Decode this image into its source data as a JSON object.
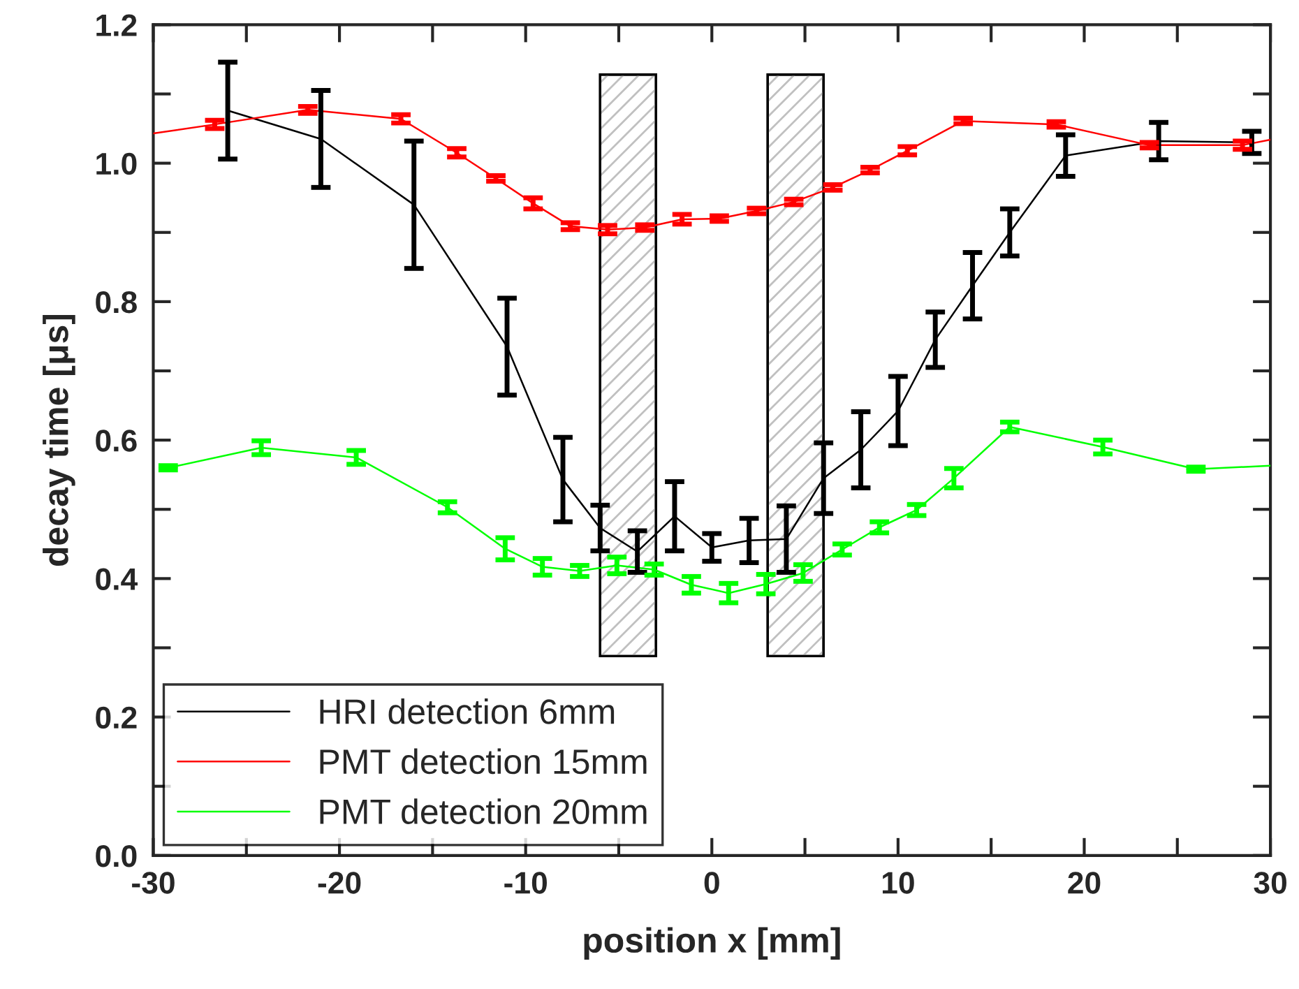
{
  "chart_data": {
    "type": "line",
    "xlabel": "position x [mm]",
    "ylabel": "decay time [μs]",
    "xlim": [
      -30,
      30
    ],
    "ylim": [
      0,
      1.2
    ],
    "xticks": [
      -30,
      {
        "value": -25,
        "label": null
      },
      -20,
      {
        "value": -15,
        "label": null
      },
      -10,
      {
        "value": -5,
        "label": null
      },
      0,
      {
        "value": 5,
        "label": null
      },
      10,
      {
        "value": 15,
        "label": null
      },
      20,
      {
        "value": 25,
        "label": null
      },
      30
    ],
    "yticks": [
      {
        "value": 0,
        "label": "0.0"
      },
      {
        "value": 0.1,
        "label": null
      },
      0.2,
      {
        "value": 0.3,
        "label": null
      },
      0.4,
      {
        "value": 0.5,
        "label": null
      },
      0.6,
      {
        "value": 0.7,
        "label": null
      },
      0.8,
      {
        "value": 0.9,
        "label": null
      },
      {
        "value": 1,
        "label": "1.0"
      },
      {
        "value": 1.1,
        "label": null
      },
      1.2
    ],
    "grid": false,
    "legend": "bottom left",
    "marker": "none",
    "line_style": "solid",
    "bands": [
      {
        "axis": "x",
        "from": -6,
        "to": -3,
        "color": "#c0c0c0"
      },
      {
        "axis": "x",
        "from": 3,
        "to": 6,
        "color": "#c0c0c0"
      }
    ],
    "series": [
      {
        "name": "HRI detection 6mm",
        "color": "#000000",
        "x": [
          -26,
          -21,
          -16,
          -11,
          -8,
          -6,
          -4,
          -2,
          0,
          2,
          4,
          6,
          8,
          10,
          12,
          14,
          16,
          19,
          24,
          29
        ],
        "values": [
          1.076,
          1.035,
          0.94,
          0.735,
          0.543,
          0.473,
          0.439,
          0.49,
          0.445,
          0.455,
          0.457,
          0.545,
          0.586,
          0.642,
          0.745,
          0.823,
          0.9,
          1.011,
          1.032,
          1.03
        ],
        "errors": [
          0.07,
          0.07,
          0.092,
          0.07,
          0.061,
          0.033,
          0.03,
          0.05,
          0.02,
          0.032,
          0.048,
          0.051,
          0.055,
          0.05,
          0.04,
          0.048,
          0.034,
          0.03,
          0.027,
          0.016
        ]
      },
      {
        "name": "PMT detection 15mm",
        "color": "#ff0000",
        "x": [
          -30,
          -26.7,
          -21.7,
          -16.7,
          -13.7,
          -11.6,
          -9.6,
          -7.6,
          -5.6,
          -3.6,
          -1.6,
          0.4,
          2.4,
          4.4,
          6.5,
          8.5,
          10.5,
          13.5,
          18.5,
          23.5,
          28.5,
          30
        ],
        "values": [
          1.043,
          1.056,
          1.077,
          1.064,
          1.015,
          0.978,
          0.942,
          0.909,
          0.904,
          0.907,
          0.919,
          0.92,
          0.931,
          0.944,
          0.965,
          0.99,
          1.018,
          1.061,
          1.056,
          1.026,
          1.026,
          1.034
        ],
        "errors": [
          null,
          0.006,
          0.005,
          0.006,
          0.006,
          0.004,
          0.008,
          0.005,
          0.006,
          0.004,
          0.007,
          0.004,
          0.004,
          0.004,
          0.004,
          0.004,
          0.006,
          0.004,
          0.004,
          0.004,
          0.006,
          null
        ]
      },
      {
        "name": "PMT detection 20mm",
        "color": "#00ff00",
        "x": [
          -29.2,
          -24.2,
          -19.1,
          -14.2,
          -11.1,
          -9.1,
          -7.1,
          -5.1,
          -3.1,
          -1.1,
          0.9,
          2.9,
          4.9,
          7,
          9,
          11,
          13,
          16,
          21,
          26,
          30
        ],
        "values": [
          0.56,
          0.589,
          0.575,
          0.503,
          0.443,
          0.417,
          0.411,
          0.419,
          0.413,
          0.391,
          0.379,
          0.392,
          0.408,
          0.442,
          0.474,
          0.499,
          0.545,
          0.619,
          0.59,
          0.558,
          0.563
        ],
        "errors": [
          0.003,
          0.01,
          0.01,
          0.008,
          0.016,
          0.012,
          0.008,
          0.012,
          0.008,
          0.012,
          0.014,
          0.014,
          0.012,
          0.008,
          0.008,
          0.008,
          0.014,
          0.007,
          0.01,
          0.003,
          null
        ]
      }
    ]
  }
}
